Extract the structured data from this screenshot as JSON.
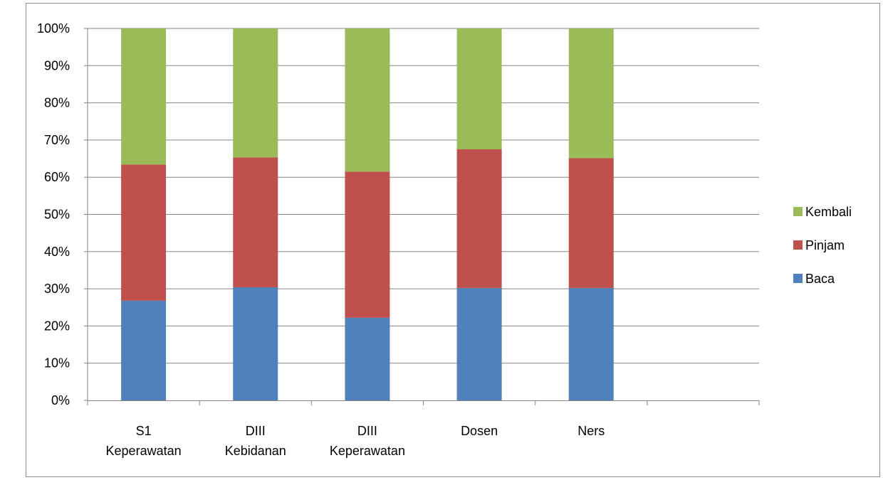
{
  "chart_data": {
    "type": "bar",
    "stacked": true,
    "percent_stacked": true,
    "categories": [
      [
        "S1",
        "Keperawatan"
      ],
      [
        "DIII",
        "Kebidanan"
      ],
      [
        "DIII",
        "Keperawatan"
      ],
      [
        "Dosen"
      ],
      [
        "Ners"
      ],
      []
    ],
    "series": [
      {
        "name": "Baca",
        "color": "#4F81BD",
        "values": [
          26.8,
          30.4,
          22.2,
          30.2,
          30.2,
          null
        ]
      },
      {
        "name": "Pinjam",
        "color": "#C0504D",
        "values": [
          36.6,
          34.9,
          39.3,
          37.3,
          34.9,
          null
        ]
      },
      {
        "name": "Kembali",
        "color": "#9BBB59",
        "values": [
          36.6,
          34.7,
          38.5,
          32.5,
          34.9,
          null
        ]
      }
    ],
    "ylim": [
      0,
      100
    ],
    "ytick_labels": [
      "0%",
      "10%",
      "20%",
      "30%",
      "40%",
      "50%",
      "60%",
      "70%",
      "80%",
      "90%",
      "100%"
    ],
    "grid": true,
    "legend_position": "right",
    "legend_order": [
      "Kembali",
      "Pinjam",
      "Baca"
    ],
    "title": "",
    "xlabel": "",
    "ylabel": ""
  }
}
